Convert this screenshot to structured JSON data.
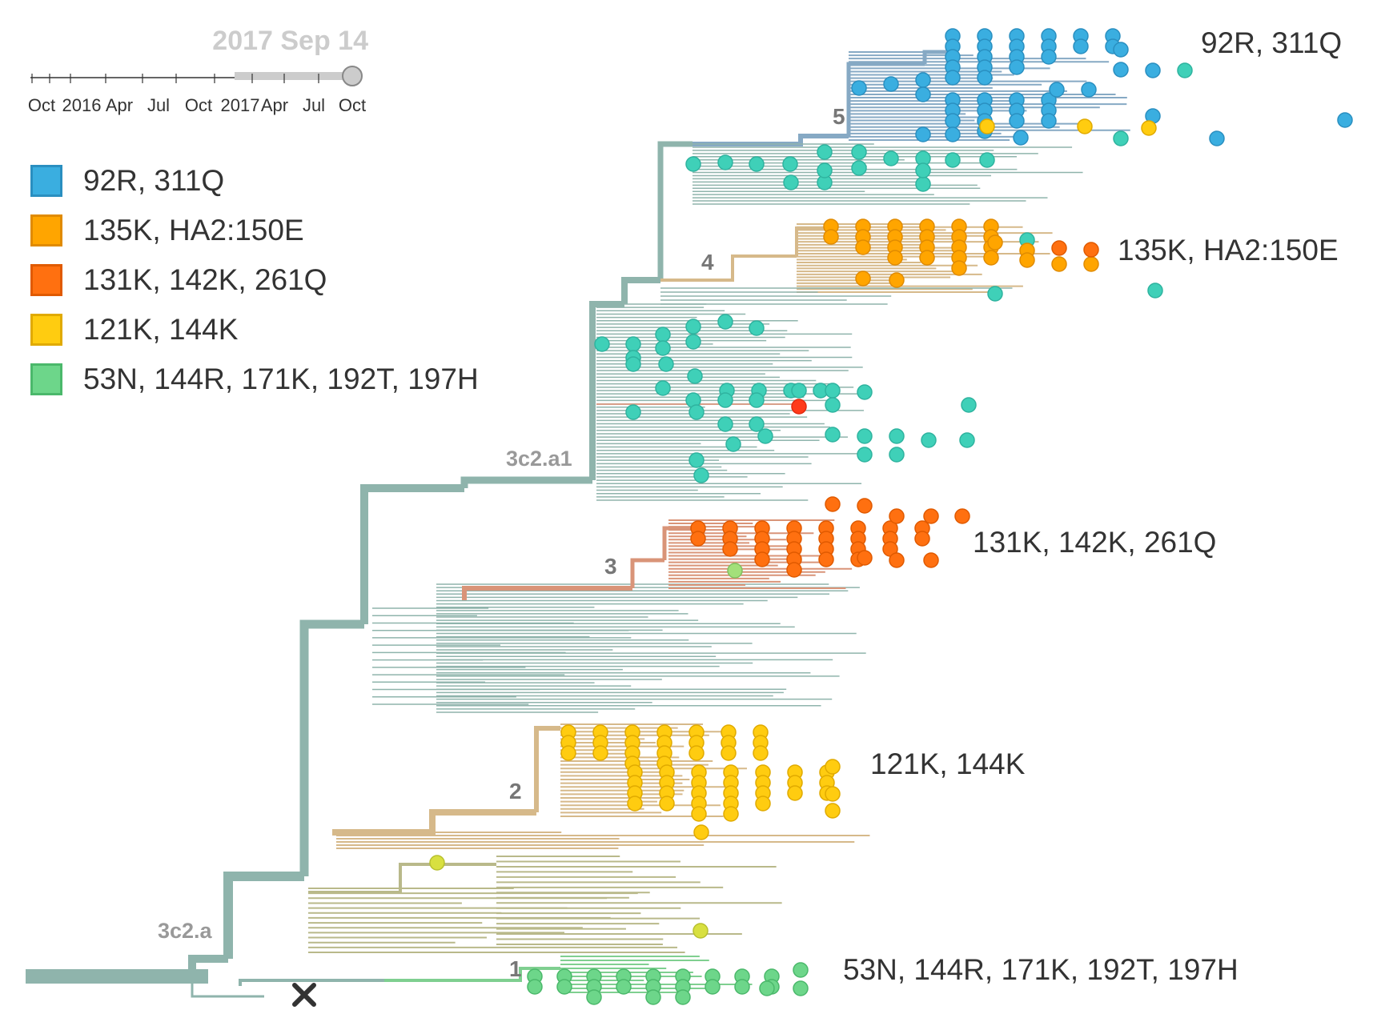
{
  "timeline": {
    "date": "2017 Sep 14",
    "ticks": [
      "Oct",
      "2016",
      "Apr",
      "Jul",
      "Oct",
      "2017",
      "Apr",
      "Jul",
      "Oct"
    ],
    "colors": {
      "text": "#cccccc",
      "axis": "#333333",
      "track": "#cccccc",
      "handle": "#bbbbbb"
    }
  },
  "legend": {
    "items": [
      {
        "label": "92R, 311Q",
        "color": "#3aaee0",
        "border": "#2a8fc0"
      },
      {
        "label": "135K, HA2:150E",
        "color": "#ffa500",
        "border": "#e08b00"
      },
      {
        "label": "131K, 142K, 261Q",
        "color": "#ff7010",
        "border": "#e05a00"
      },
      {
        "label": "121K, 144K",
        "color": "#ffcc10",
        "border": "#e0aa00"
      },
      {
        "label": "53N, 144R, 171K, 192T, 197H",
        "color": "#6dd68a",
        "border": "#4bb86b"
      }
    ]
  },
  "tree": {
    "clade_labels": [
      "3c2.a",
      "3c2.a1"
    ],
    "clade_numbers": [
      "1",
      "2",
      "3",
      "4",
      "5"
    ],
    "mutation_labels": [
      "92R, 311Q",
      "135K, HA2:150E",
      "131K, 142K, 261Q",
      "121K, 144K",
      "53N, 144R, 171K, 192T, 197H"
    ],
    "colors": {
      "trunk": "#8fb4ac",
      "teal": "#3fd0b8",
      "tan": "#d6b98a",
      "salmon": "#d99478",
      "olive": "#b9b98a",
      "green": "#7fcf90",
      "blue_branch": "#86a9c4"
    },
    "icons": {
      "marker": "x-mark-icon"
    }
  }
}
